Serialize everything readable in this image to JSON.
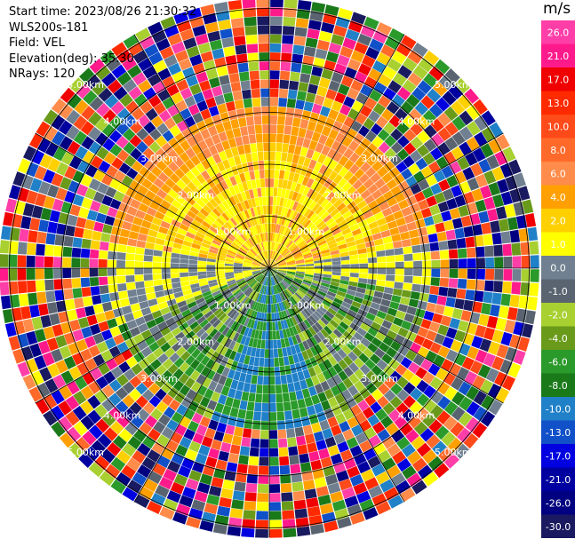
{
  "header": {
    "start_time_label": "Start time:",
    "start_time": "2023/08/26 21:30:32",
    "instrument": "WLS200s-181",
    "field_label": "Field:",
    "field": "VEL",
    "elevation_label": "Elevation(deg):",
    "elevation": "35.30",
    "nrays_label": "NRays:",
    "nrays": "120"
  },
  "chart_data": {
    "type": "heatmap",
    "subtype": "polar PPI",
    "field": "VEL",
    "rays": 120,
    "range_ring_labels": [
      "1.00km",
      "2.00km",
      "3.00km",
      "4.00km",
      "5.00km"
    ],
    "range_rings_km": [
      1,
      2,
      3,
      4,
      5
    ],
    "max_range_km": 5.2,
    "colorbar": {
      "unit": "m/s",
      "ticks": [
        "26.0",
        "21.0",
        "17.0",
        "13.0",
        "10.0",
        "8.0",
        "6.0",
        "4.0",
        "2.0",
        "1.0",
        "0.0",
        "-1.0",
        "-2.0",
        "-4.0",
        "-6.0",
        "-8.0",
        "-10.0",
        "-13.0",
        "-17.0",
        "-21.0",
        "-26.0",
        "-30.0"
      ],
      "colors": [
        "#ff3ea8",
        "#ff1a8c",
        "#f00000",
        "#ff2a00",
        "#ff4a1a",
        "#ff6a2a",
        "#ff8c4a",
        "#ffa000",
        "#ffd000",
        "#ffff00",
        "#708090",
        "#5a6470",
        "#a8d030",
        "#6a9a1a",
        "#2a9a2a",
        "#1a7a1a",
        "#2080c8",
        "#1050c8",
        "#0000e0",
        "#0000a0",
        "#000080",
        "#1a1a60"
      ]
    }
  }
}
